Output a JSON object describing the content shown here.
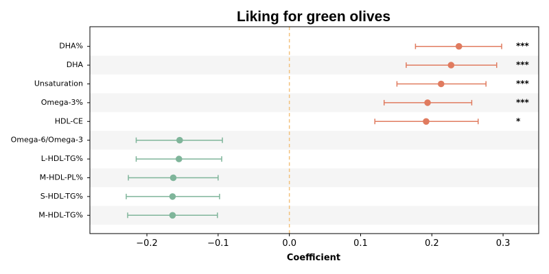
{
  "chart_data": {
    "type": "forest",
    "title": "Liking for green olives",
    "xlabel": "Coefficient",
    "ylabel": "",
    "xlim": [
      -0.28,
      0.35
    ],
    "x_ticks": [
      -0.2,
      -0.1,
      0.0,
      0.1,
      0.2,
      0.3
    ],
    "x_tick_labels": [
      "−0.2",
      "−0.1",
      "0.0",
      "0.1",
      "0.2",
      "0.3"
    ],
    "reference_line": 0.0,
    "grid": false,
    "row_banding": true,
    "colors": {
      "positive": "#e07b5f",
      "negative": "#7fb59a",
      "reference_line": "#f3c27e",
      "band": "#f5f5f5"
    },
    "rows": [
      {
        "label": "DHA%",
        "estimate": 0.238,
        "ci_low": 0.177,
        "ci_high": 0.298,
        "sig": "***"
      },
      {
        "label": "DHA",
        "estimate": 0.227,
        "ci_low": 0.164,
        "ci_high": 0.291,
        "sig": "***"
      },
      {
        "label": "Unsaturation",
        "estimate": 0.213,
        "ci_low": 0.151,
        "ci_high": 0.276,
        "sig": "***"
      },
      {
        "label": "Omega-3%",
        "estimate": 0.194,
        "ci_low": 0.133,
        "ci_high": 0.256,
        "sig": "***"
      },
      {
        "label": "HDL-CE",
        "estimate": 0.192,
        "ci_low": 0.12,
        "ci_high": 0.265,
        "sig": "*"
      },
      {
        "label": "Omega-6/Omega-3",
        "estimate": -0.154,
        "ci_low": -0.215,
        "ci_high": -0.094,
        "sig": ""
      },
      {
        "label": "L-HDL-TG%",
        "estimate": -0.155,
        "ci_low": -0.215,
        "ci_high": -0.095,
        "sig": ""
      },
      {
        "label": "M-HDL-PL%",
        "estimate": -0.163,
        "ci_low": -0.226,
        "ci_high": -0.1,
        "sig": ""
      },
      {
        "label": "S-HDL-TG%",
        "estimate": -0.164,
        "ci_low": -0.229,
        "ci_high": -0.098,
        "sig": ""
      },
      {
        "label": "M-HDL-TG%",
        "estimate": -0.164,
        "ci_low": -0.227,
        "ci_high": -0.101,
        "sig": ""
      }
    ]
  }
}
